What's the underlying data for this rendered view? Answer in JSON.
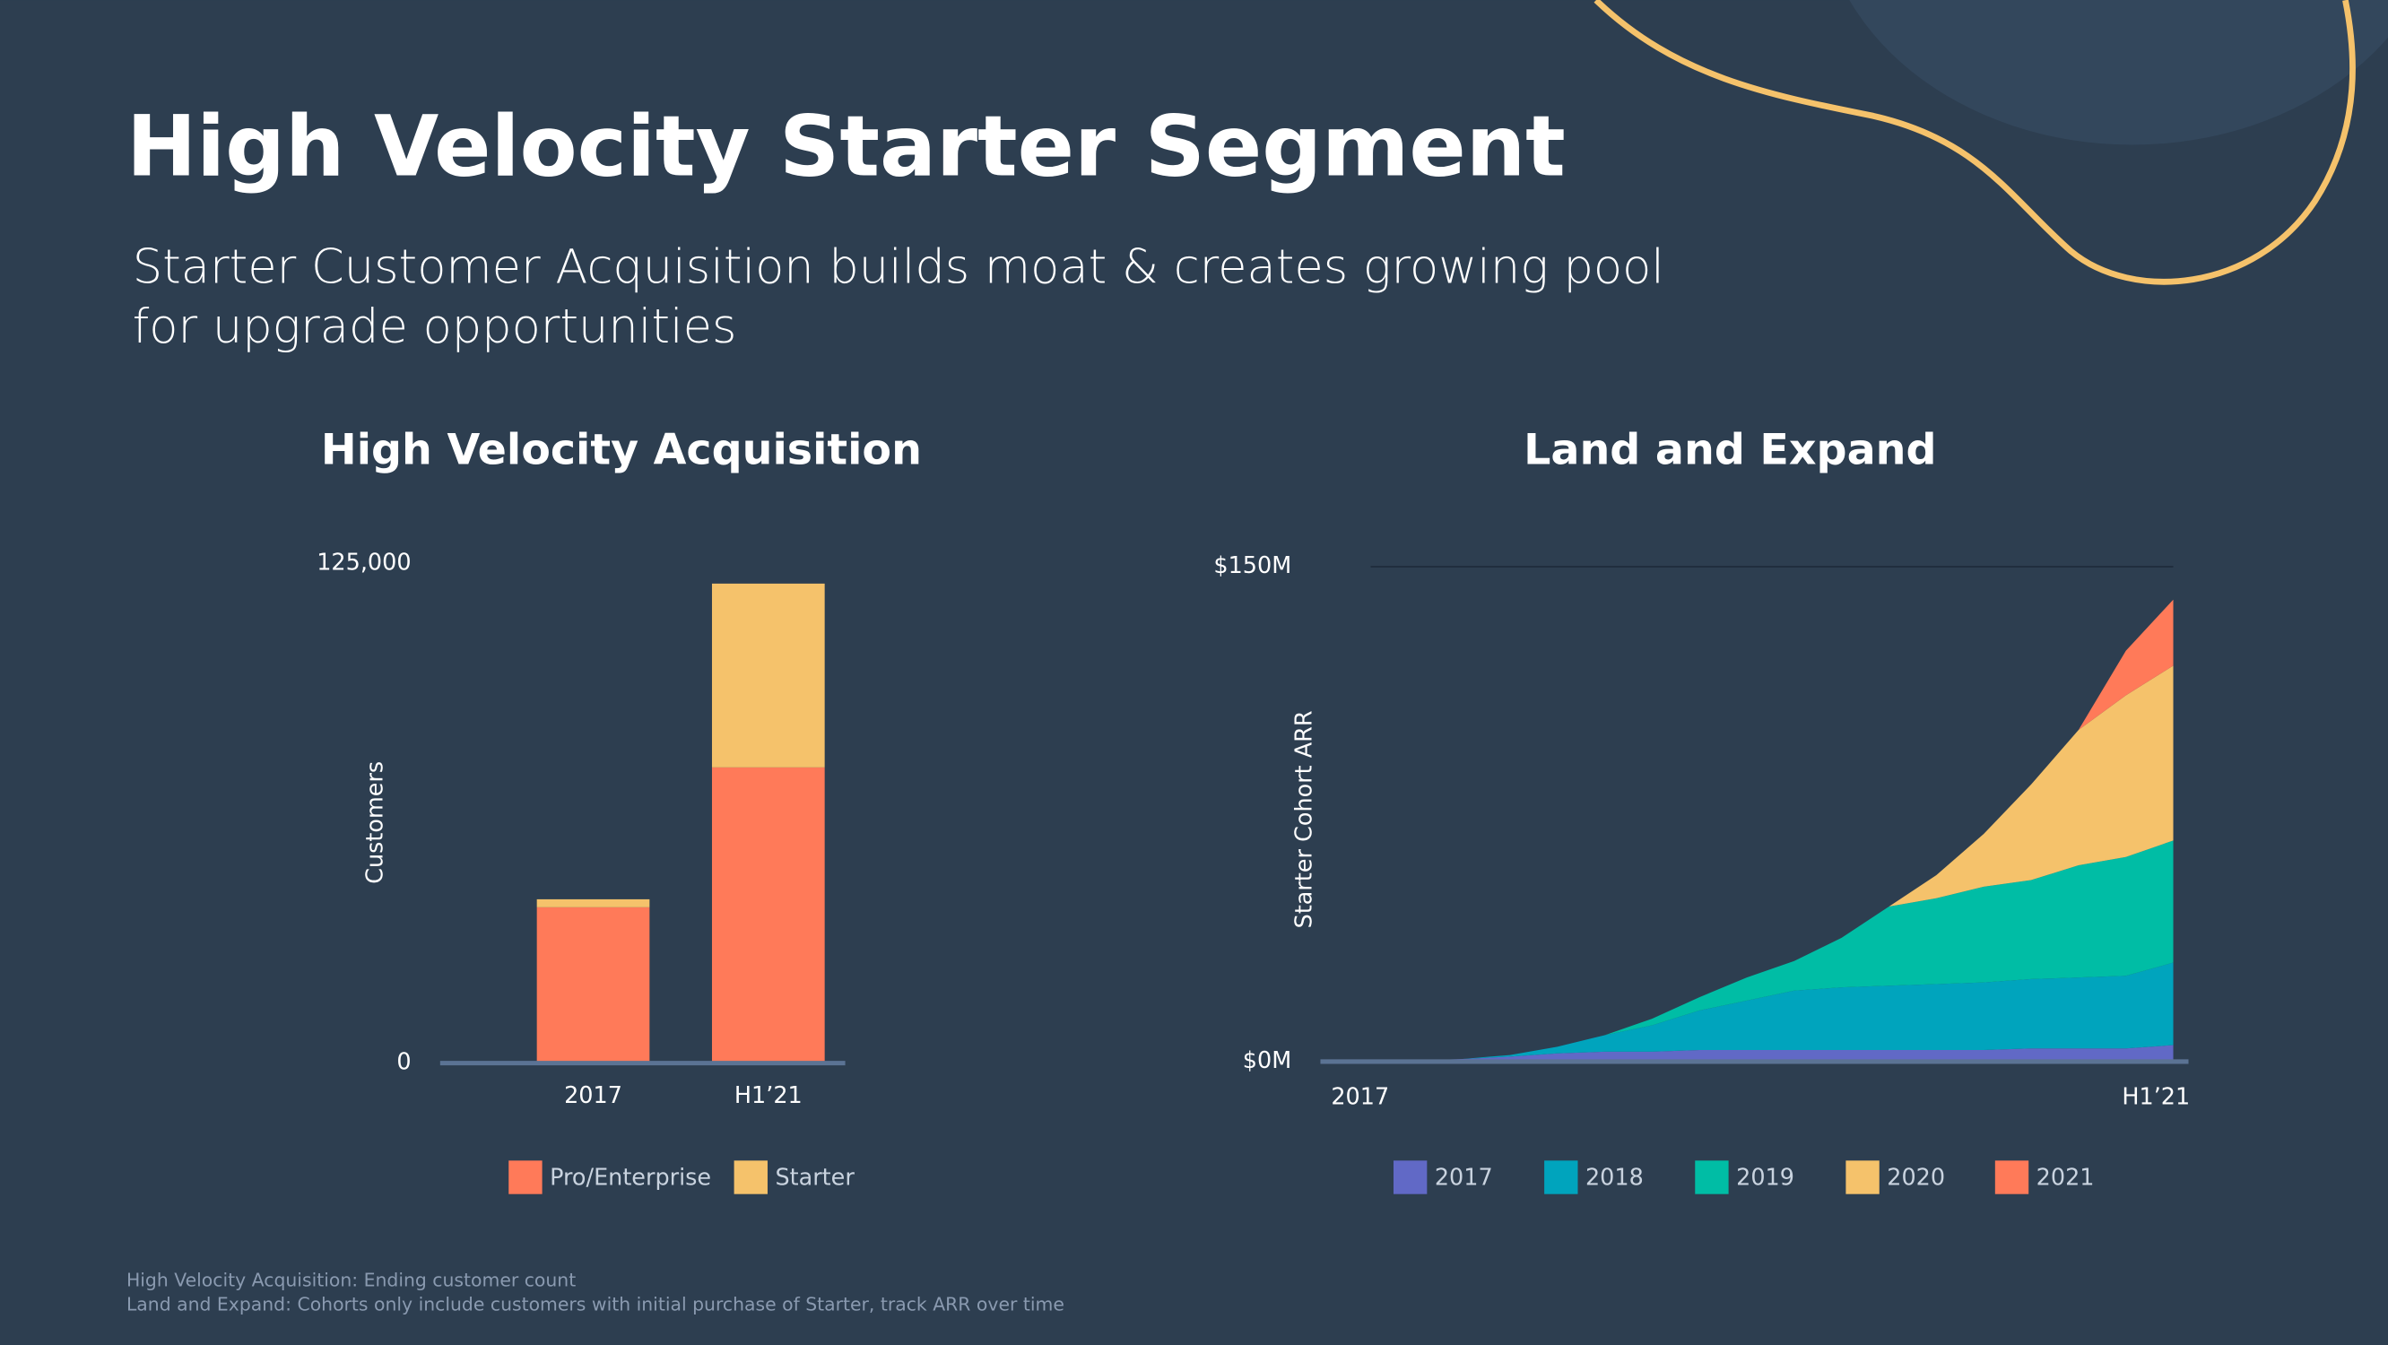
{
  "title": "High Velocity Starter Segment",
  "subtitle": [
    "Starter Customer Acquisition builds moat & creates growing pool",
    "for upgrade opportunities"
  ],
  "footnotes": [
    "High Velocity Acquisition: Ending customer count",
    "Land and Expand: Cohorts only include customers with initial purchase of Starter, track ARR over time"
  ],
  "chart_data": [
    {
      "type": "bar",
      "stacked": true,
      "title": "High Velocity Acquisition",
      "categories": [
        "2017",
        "H1’21"
      ],
      "series": [
        {
          "name": "Pro/Enterprise",
          "color": "#ff7a59",
          "values": [
            39000,
            74000
          ]
        },
        {
          "name": "Starter",
          "color": "#f5c26b",
          "values": [
            2000,
            46000
          ]
        }
      ],
      "ylim": [
        0,
        125000
      ],
      "yticks": [
        0,
        {
          "value": 125000,
          "label": "125,000"
        }
      ],
      "ylabel": "Customers",
      "grid": false
    },
    {
      "type": "area",
      "stacked": true,
      "title": "Land and Expand",
      "categories": [
        "2017",
        null,
        null,
        null,
        null,
        null,
        null,
        null,
        null,
        null,
        null,
        null,
        null,
        null,
        null,
        null,
        null,
        null,
        "H1’21"
      ],
      "series": [
        {
          "name": "2017",
          "color": "#6169c6",
          "values": [
            0,
            0,
            0.3,
            0.8,
            1.5,
            2.5,
            3,
            3,
            3.5,
            3.5,
            3.5,
            3.5,
            3.5,
            3.5,
            3.5,
            4,
            4,
            4,
            5
          ]
        },
        {
          "name": "2018",
          "color": "#00a4bd",
          "values": [
            0,
            0,
            0,
            0,
            0.5,
            2,
            5,
            8,
            12,
            15,
            18,
            19,
            19.5,
            20,
            20.5,
            21,
            21.5,
            22,
            25
          ]
        },
        {
          "name": "2019",
          "color": "#00bda5",
          "values": [
            0,
            0,
            0,
            0,
            0,
            0,
            0,
            2,
            4,
            7,
            9,
            15,
            24,
            26,
            29,
            30,
            34,
            36,
            37
          ]
        },
        {
          "name": "2020",
          "color": "#f5c26b",
          "values": [
            0,
            0,
            0,
            0,
            0,
            0,
            0,
            0,
            0,
            0,
            0,
            0,
            0,
            7,
            16,
            29,
            41,
            49,
            53
          ]
        },
        {
          "name": "2021",
          "color": "#ff7a59",
          "values": [
            0,
            0,
            0,
            0,
            0,
            0,
            0,
            0,
            0,
            0,
            0,
            0,
            0,
            0,
            0,
            0,
            0,
            13.5,
            20
          ]
        }
      ],
      "ylim": [
        0,
        150
      ],
      "yticks": [
        {
          "value": 0,
          "label": "$0M"
        },
        {
          "value": 150,
          "label": "$150M"
        }
      ],
      "ylabel": "Starter Cohort ARR",
      "grid": true
    }
  ]
}
